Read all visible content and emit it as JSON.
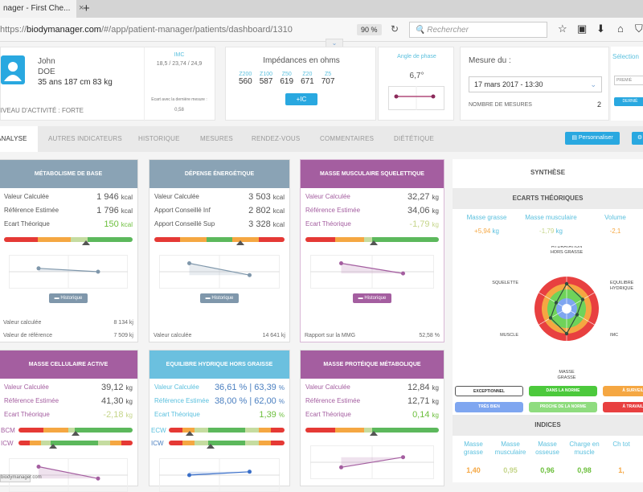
{
  "browser": {
    "tab_title": "nager - First Che...",
    "tab_close": "×",
    "new_tab": "+",
    "url_prefix": "https://",
    "url_host": "biodymanager.com",
    "url_path": "/#/app/patient-manager/patients/dashboard/1310",
    "zoom": "90 %",
    "search_placeholder": "Rechercher"
  },
  "patient": {
    "first_name": "John",
    "last_name": "DOE",
    "info": "35 ans 187 cm 83 kg",
    "activity": "NIVEAU D'ACTIVITÉ : FORTE",
    "imc_label": "IMC",
    "imc_values": "18,5 / 23,74 / 24,9",
    "ecart_label": "Ecart avec la dernière mesure :",
    "ecart_value": "0,58"
  },
  "impedances": {
    "title": "Impédances en ohms",
    "freqs": [
      "Z200",
      "Z100",
      "Z50",
      "Z20",
      "Z5"
    ],
    "values": [
      "560",
      "587",
      "619",
      "671",
      "707"
    ],
    "button": "+IC"
  },
  "phase": {
    "label": "Angle de phase",
    "value": "6,7°"
  },
  "mesure": {
    "label": "Mesure du :",
    "date": "17 mars 2017 - 13:30",
    "count_label": "NOMBRE DE MESURES",
    "count": "2",
    "right_label": "Sélection",
    "right_input": "PREMIÈ",
    "right_btn": "DERNIÈ"
  },
  "nav": {
    "tabs": [
      "ANALYSE",
      "AUTRES INDICATEURS",
      "HISTORIQUE",
      "MESURES",
      "RENDEZ-VOUS",
      "COMMENTAIRES",
      "DIÉTÉTIQUE"
    ],
    "personalize": "Personnaliser"
  },
  "cards": [
    {
      "title": "Métabolisme de base",
      "color": "#8aa3b5",
      "rows": [
        [
          "Valeur Calculée",
          "1 946",
          "kcal"
        ],
        [
          "Référence Estimée",
          "1 796",
          "kcal"
        ],
        [
          "Ecart Théorique",
          "150",
          "kcal"
        ]
      ],
      "ecart_color": "#6cbf3c",
      "gauges": [
        {
          "segments": [
            [
              "#e53935",
              26
            ],
            [
              "#f5a742",
              26
            ],
            [
              "#c5dca0",
              13
            ],
            [
              "#5cb85c",
              35
            ]
          ],
          "marker": 0.64
        }
      ],
      "history": [
        0.6,
        0.5
      ],
      "history_label": "Historique",
      "foot": [
        [
          "Valeur calculée",
          "8 134 kj"
        ],
        [
          "Valeur de référence",
          "7 509 kj"
        ]
      ]
    },
    {
      "title": "Dépense Énergétique",
      "color": "#8aa3b5",
      "rows": [
        [
          "Valeur Calculée",
          "3 503",
          "kcal"
        ],
        [
          "Apport Conseillé Inf",
          "2 802",
          "kcal"
        ],
        [
          "Apport Conseillé Sup",
          "3 328",
          "kcal"
        ]
      ],
      "ecart_color": "#555",
      "gauges": [
        {
          "segments": [
            [
              "#e53935",
              20
            ],
            [
              "#f5a742",
              20
            ],
            [
              "#5cb85c",
              20
            ],
            [
              "#f5a742",
              20
            ],
            [
              "#e53935",
              20
            ]
          ],
          "marker": 0.66
        }
      ],
      "history": [
        0.75,
        0.4
      ],
      "history_label": "Historique",
      "foot": [
        [
          "Valeur calculée",
          "14 641 kj"
        ]
      ]
    },
    {
      "title": "Masse Musculaire Squelettique",
      "color": "#a45ea0",
      "label_color": "#a45ea0",
      "rows": [
        [
          "Valeur Calculée",
          "32,27",
          "kg"
        ],
        [
          "Référence Estimée",
          "34,06",
          "kg"
        ],
        [
          "Ecart Théorique",
          "-1,79",
          "kg"
        ]
      ],
      "ecart_color": "#c5d58a",
      "gauges": [
        {
          "segments": [
            [
              "#e53935",
              22
            ],
            [
              "#f5a742",
              22
            ],
            [
              "#c5dca0",
              6
            ],
            [
              "#5cb85c",
              50
            ]
          ],
          "marker": 0.51
        }
      ],
      "history": [
        0.75,
        0.45
      ],
      "history_label": "Historique",
      "foot": [
        [
          "Rapport sur la MMG",
          "52,58 %"
        ]
      ]
    },
    {
      "title": "Masse Cellulaire Active",
      "color": "#a45ea0",
      "label_color": "#a45ea0",
      "rows": [
        [
          "Valeur Calculée",
          "39,12",
          "kg"
        ],
        [
          "Référence Estimée",
          "41,30",
          "kg"
        ],
        [
          "Ecart Théorique",
          "-2,18",
          "kg"
        ]
      ],
      "ecart_color": "#c5d58a",
      "gauges": [
        {
          "label": "BCM",
          "segments": [
            [
              "#e53935",
              22
            ],
            [
              "#f5a742",
              22
            ],
            [
              "#c5dca0",
              5
            ],
            [
              "#5cb85c",
              51
            ]
          ],
          "marker": 0.5
        },
        {
          "label": "ICW",
          "segments": [
            [
              "#e53935",
              10
            ],
            [
              "#f5a742",
              10
            ],
            [
              "#c5dca0",
              8
            ],
            [
              "#5cb85c",
              42
            ],
            [
              "#c5dca0",
              10
            ],
            [
              "#f5a742",
              10
            ],
            [
              "#e53935",
              10
            ]
          ],
          "marker": 0.3
        }
      ],
      "history": [
        0.75,
        0.4
      ]
    },
    {
      "title": "Equilibre Hydrique Hors Graisse",
      "color": "#6bc0df",
      "label_color": "#5bc0de",
      "rows": [
        [
          "Valeur Calculée",
          "36,61 % | 63,39",
          "%"
        ],
        [
          "Référence Estimée",
          "38,00 % | 62,00",
          "%"
        ],
        [
          "Ecart Théorique",
          "1,39",
          "%"
        ]
      ],
      "ecart_color": "#6cbf3c",
      "gauges": [
        {
          "label": "ECW",
          "segments": [
            [
              "#e53935",
              12
            ],
            [
              "#f5a742",
              10
            ],
            [
              "#c5dca0",
              12
            ],
            [
              "#5cb85c",
              32
            ],
            [
              "#c5dca0",
              12
            ],
            [
              "#f5a742",
              10
            ],
            [
              "#e53935",
              12
            ]
          ],
          "marker": 0.18
        },
        {
          "label": "ICW",
          "segments": [
            [
              "#e53935",
              12
            ],
            [
              "#f5a742",
              10
            ],
            [
              "#c5dca0",
              12
            ],
            [
              "#5cb85c",
              32
            ],
            [
              "#c5dca0",
              12
            ],
            [
              "#f5a742",
              10
            ],
            [
              "#e53935",
              12
            ]
          ],
          "marker": 0.36
        }
      ],
      "history": [
        0.5,
        0.6
      ]
    },
    {
      "title": "Masse Protéique Métabolique",
      "color": "#a45ea0",
      "label_color": "#a45ea0",
      "rows": [
        [
          "Valeur Calculée",
          "12,84",
          "kg"
        ],
        [
          "Référence Estimée",
          "12,71",
          "kg"
        ],
        [
          "Ecart Théorique",
          "0,14",
          "kg"
        ]
      ],
      "ecart_color": "#6cbf3c",
      "gauges": [
        {
          "segments": [
            [
              "#e53935",
              22
            ],
            [
              "#f5a742",
              22
            ],
            [
              "#c5dca0",
              6
            ],
            [
              "#5cb85c",
              50
            ]
          ],
          "marker": 0.51
        }
      ],
      "history": [
        0.35,
        0.65
      ]
    }
  ],
  "synthese": {
    "title": "SYNTHÈSE",
    "ecarts_title": "ECARTS THÉORIQUES",
    "ecarts": [
      [
        "Masse grasse",
        "+5,94",
        "kg",
        "#f5a742"
      ],
      [
        "Masse musculaire",
        "-1,79",
        "kg",
        "#c5d58a"
      ],
      [
        "Volume",
        "-2,1",
        "",
        "#f5a742"
      ]
    ],
    "radar_labels": [
      "HYDRATATION HORS GRASSE",
      "EQUILIBRE HYDRIQUE",
      "IMC",
      "MASSE GRASSE",
      "MUSCLE",
      "SQUELETTE"
    ],
    "legend": [
      [
        "EXCEPTIONNEL",
        "#ffffff"
      ],
      [
        "DANS LA NORME",
        "#4cc93c"
      ],
      [
        "À SURVEILLER",
        "#f5a742"
      ],
      [
        "TRÈS BIEN",
        "#7fa6f0"
      ],
      [
        "PROCHE DE LA NORME",
        "#8fdc7f"
      ],
      [
        "À TRAVAILLER",
        "#e84040"
      ]
    ],
    "indices_title": "INDICES",
    "indices": [
      [
        "Masse grasse",
        "1,40",
        "#f5a742"
      ],
      [
        "Masse musculaire",
        "0,95",
        "#c5d58a"
      ],
      [
        "Masse osseuse",
        "0,96",
        "#6cbf3c"
      ],
      [
        "Charge en muscle",
        "0,98",
        "#6cbf3c"
      ],
      [
        "Ch tot",
        "1,",
        "#f5a742"
      ]
    ]
  },
  "status_url": "biodymanager.com"
}
